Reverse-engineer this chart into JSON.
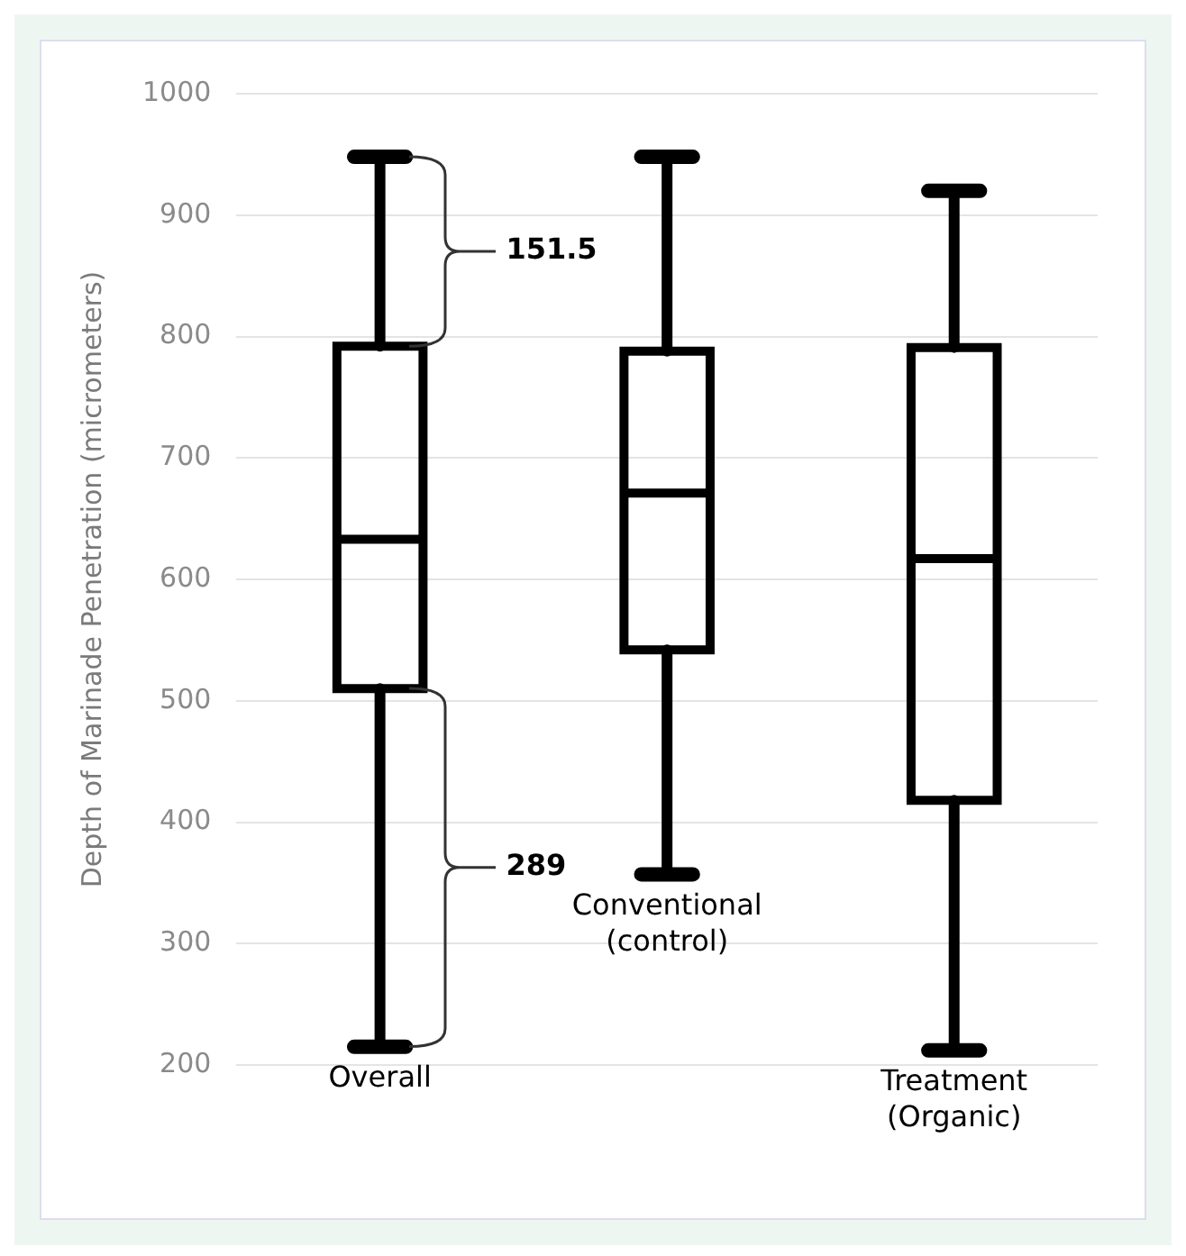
{
  "chart_data": {
    "type": "box",
    "ylabel": "Depth of Marinade Penetration (micrometers)",
    "categories": [
      "Overall",
      "Conventional (control)",
      "Treatment (Organic)"
    ],
    "boxes": [
      {
        "low": 215,
        "q1": 510,
        "median": 633,
        "q3": 792,
        "high": 948
      },
      {
        "low": 357,
        "q1": 542,
        "median": 671,
        "q3": 788,
        "high": 948
      },
      {
        "low": 212,
        "q1": 418,
        "median": 617,
        "q3": 791,
        "high": 920
      }
    ],
    "ylim": [
      200,
      1000
    ],
    "yticks": [
      200,
      300,
      400,
      500,
      600,
      700,
      800,
      900,
      1000
    ],
    "grid": "y",
    "annotations": [
      "151.5",
      "289"
    ]
  }
}
